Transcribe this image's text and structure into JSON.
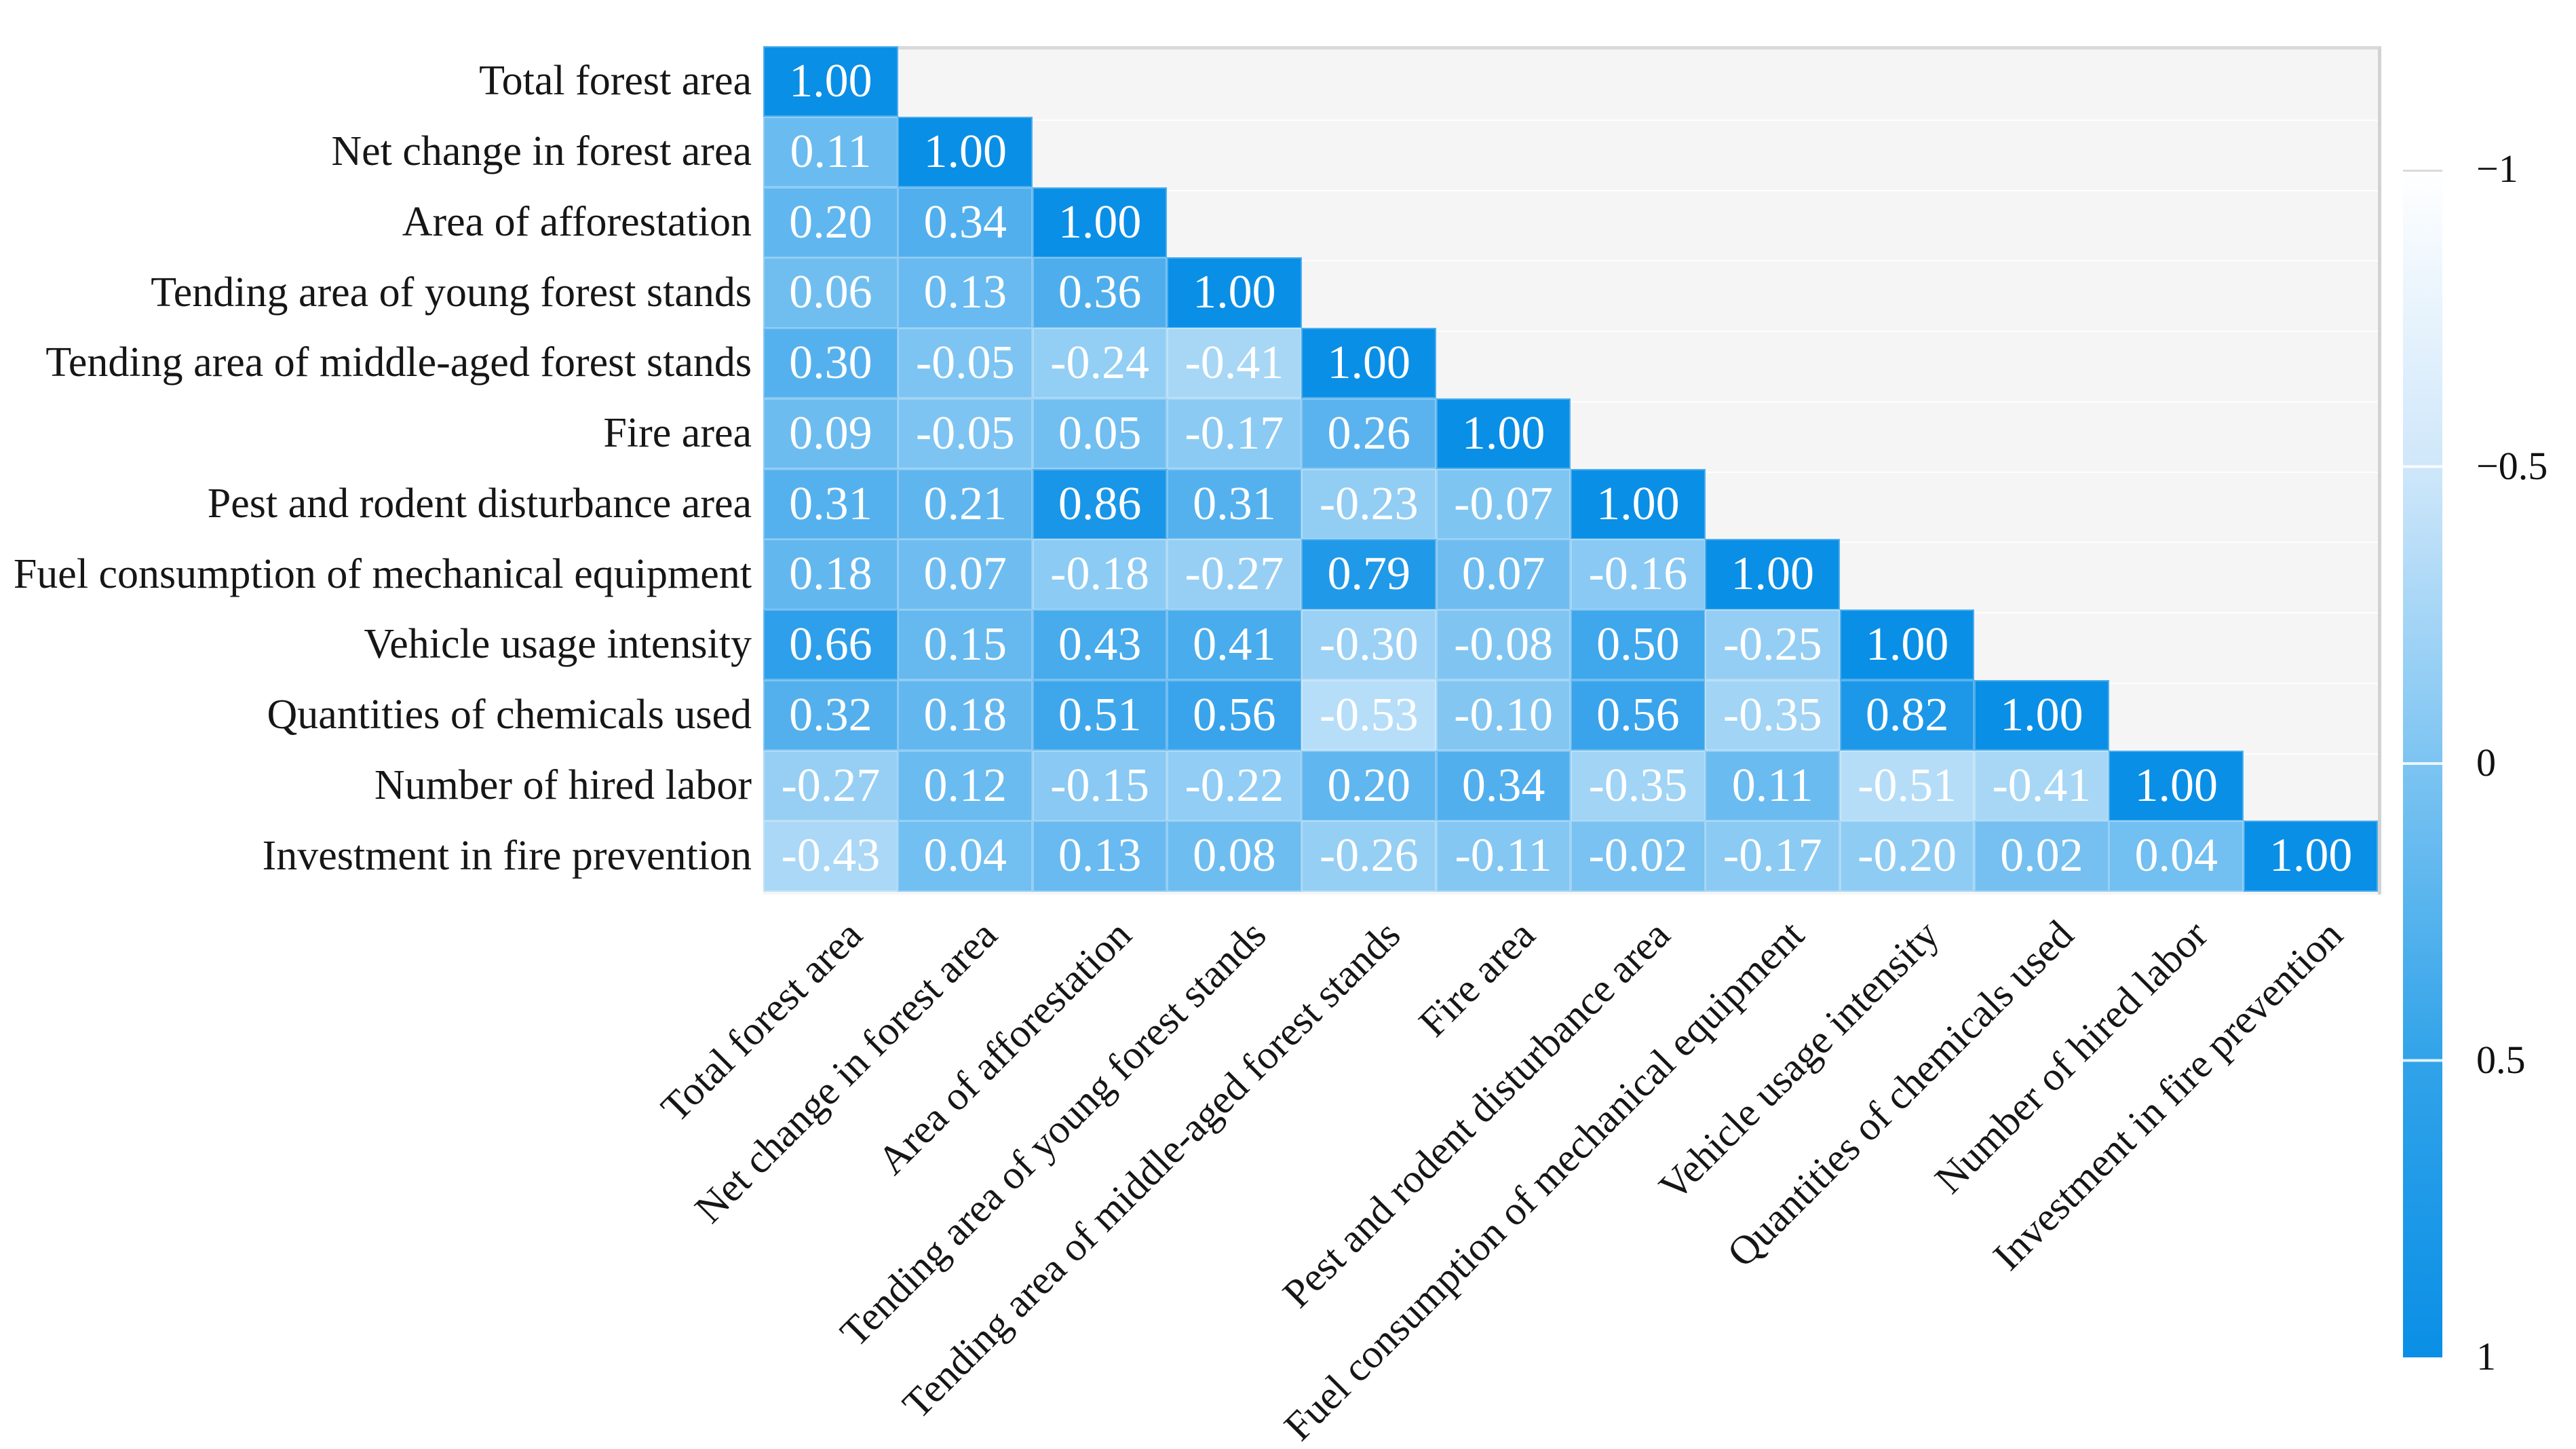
{
  "chart_data": {
    "type": "heatmap",
    "subtype": "lower-triangular correlation matrix",
    "title": "",
    "variables": [
      "Total forest area",
      "Net change in forest area",
      "Area of afforestation",
      "Tending area of young forest stands",
      "Tending area of middle-aged forest stands",
      "Fire area",
      "Pest and rodent disturbance area",
      "Fuel consumption of mechanical equipment",
      "Vehicle usage intensity",
      "Quantities of chemicals used",
      "Number of hired labor",
      "Investment in fire prevention"
    ],
    "matrix": [
      [
        1.0
      ],
      [
        0.11,
        1.0
      ],
      [
        0.2,
        0.34,
        1.0
      ],
      [
        0.06,
        0.13,
        0.36,
        1.0
      ],
      [
        0.3,
        -0.05,
        -0.24,
        -0.41,
        1.0
      ],
      [
        0.09,
        -0.05,
        0.05,
        -0.17,
        0.26,
        1.0
      ],
      [
        0.31,
        0.21,
        0.86,
        0.31,
        -0.23,
        -0.07,
        1.0
      ],
      [
        0.18,
        0.07,
        -0.18,
        -0.27,
        0.79,
        0.07,
        -0.16,
        1.0
      ],
      [
        0.66,
        0.15,
        0.43,
        0.41,
        -0.3,
        -0.08,
        0.5,
        -0.25,
        1.0
      ],
      [
        0.32,
        0.18,
        0.51,
        0.56,
        -0.53,
        -0.1,
        0.56,
        -0.35,
        0.82,
        1.0
      ],
      [
        -0.27,
        0.12,
        -0.15,
        -0.22,
        0.2,
        0.34,
        -0.35,
        0.11,
        -0.51,
        -0.41,
        1.0
      ],
      [
        -0.43,
        0.04,
        0.13,
        0.08,
        -0.26,
        -0.11,
        -0.02,
        -0.17,
        -0.2,
        0.02,
        0.04,
        1.0
      ]
    ],
    "value_decimals": 2,
    "cell_text_color": "#ffffff",
    "plot_background": "#f5f5f6",
    "colormap": {
      "min_value": -1,
      "max_value": 1,
      "min_color": "#ffffff",
      "max_color": "#0a8fe6",
      "gamma": 0.85
    },
    "legend": {
      "position": "right",
      "orientation": "vertical",
      "top_value_label": "−1",
      "tick_labels": [
        "−1",
        "−0.5",
        "0",
        "0.5",
        "1"
      ],
      "tick_values": [
        -1,
        -0.5,
        0,
        0.5,
        1
      ]
    },
    "grid": false,
    "x_tick_rotation_deg": 45
  }
}
